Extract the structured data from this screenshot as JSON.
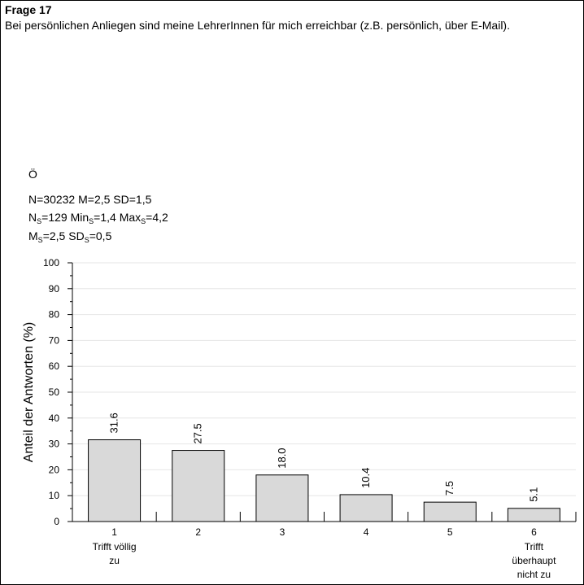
{
  "header": {
    "question_number": "Frage 17",
    "question_text": "Bei persönlichen Anliegen sind meine LehrerInnen für mich erreichbar (z.B. persönlich, über E-Mail)."
  },
  "group": "Ö",
  "stats": {
    "line1": "N=30232 M=2,5 SD=1,5",
    "ns": "129",
    "min_s": "1,4",
    "max_s": "4,2",
    "m_s": "2,5",
    "sd_s": "0,5",
    "n_label": "N",
    "min_label": "Min",
    "max_label": "Max",
    "m_label": "M",
    "sd_label": "SD",
    "sub": "S"
  },
  "chart_data": {
    "type": "bar",
    "ylabel": "Anteil der Antworten (%)",
    "ylim": [
      0,
      100
    ],
    "yticks": [
      0,
      10,
      20,
      30,
      40,
      50,
      60,
      70,
      80,
      90,
      100
    ],
    "grid": true,
    "categories": [
      "1",
      "2",
      "3",
      "4",
      "5",
      "6"
    ],
    "category_sublabels": [
      [
        "Trifft völlig",
        "zu"
      ],
      [],
      [],
      [],
      [],
      [
        "Trifft",
        "überhaupt",
        "nicht zu"
      ]
    ],
    "values": [
      31.6,
      27.5,
      18.0,
      10.4,
      7.5,
      5.1
    ],
    "value_labels": [
      "31.6",
      "27.5",
      "18.0",
      "10.4",
      "7.5",
      "5.1"
    ],
    "colors": {
      "bar_fill": "#d9d9d9",
      "bar_stroke": "#000000",
      "grid": "#e6e6e6"
    }
  }
}
